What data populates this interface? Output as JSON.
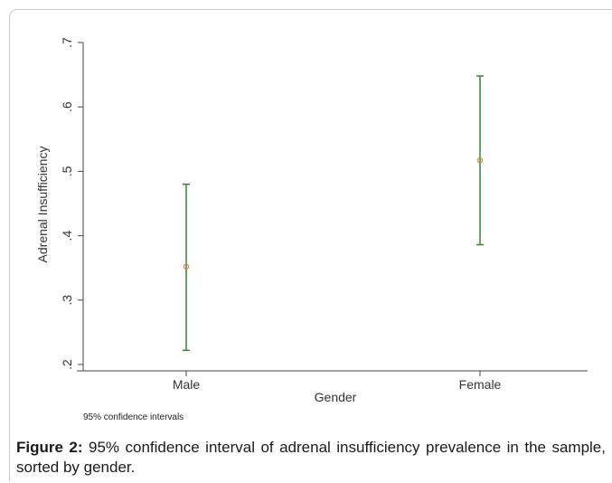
{
  "chart_data": {
    "type": "errorbar",
    "categories": [
      "Male",
      "Female"
    ],
    "estimates": [
      0.352,
      0.517
    ],
    "lower": [
      0.222,
      0.386
    ],
    "upper": [
      0.48,
      0.648
    ],
    "ylabel": "Adrenal Insufficiency",
    "xlabel": "Gender",
    "ylim": [
      0.2,
      0.7
    ],
    "yticks": [
      0.2,
      0.3,
      0.4,
      0.5,
      0.6,
      0.7
    ],
    "ytick_labels": [
      ".2",
      ".3",
      ".4",
      ".5",
      ".6",
      ".7"
    ],
    "grid": false,
    "note": "95% confidence intervals",
    "colors": {
      "interval": "#2e8b2e",
      "point": "#e07a3a",
      "axis": "#444444"
    }
  },
  "caption": {
    "label": "Figure 2:",
    "text": "95% confidence interval of adrenal insufficiency prevalence in the sample, sorted by gender."
  }
}
